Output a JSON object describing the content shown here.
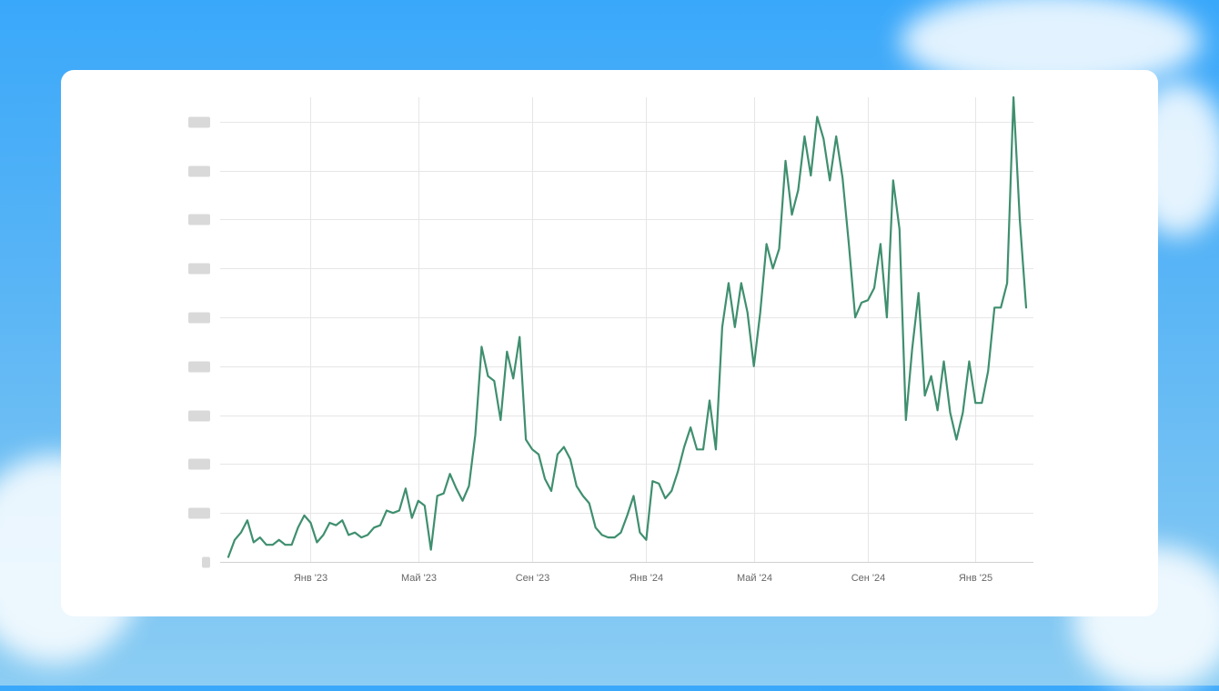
{
  "theme": {
    "line_color": "#3f8f6f",
    "card_bg": "#ffffff",
    "sky_top": "#3aa8fa",
    "sky_bottom": "#8ccdf3"
  },
  "chart_data": {
    "type": "line",
    "title": "",
    "xlabel": "",
    "ylabel": "",
    "ylim": [
      0,
      95
    ],
    "grid": true,
    "legend": "none",
    "ytick_labels_visible": false,
    "y_ticks": [
      0,
      10,
      20,
      30,
      40,
      50,
      60,
      70,
      80,
      90
    ],
    "x_ticks": [
      {
        "label": "Янв '23",
        "index": 13
      },
      {
        "label": "Май '23",
        "index": 30
      },
      {
        "label": "Сен '23",
        "index": 48
      },
      {
        "label": "Янв '24",
        "index": 66
      },
      {
        "label": "Май '24",
        "index": 83
      },
      {
        "label": "Сен '24",
        "index": 101
      },
      {
        "label": "Янв '25",
        "index": 118
      }
    ],
    "series": [
      {
        "values": [
          1,
          4.5,
          6,
          8.5,
          4,
          5,
          3.5,
          3.5,
          4.5,
          3.5,
          3.5,
          7,
          9.5,
          8,
          4,
          5.5,
          8,
          7.5,
          8.5,
          5.5,
          6,
          5,
          5.5,
          7,
          7.5,
          10.5,
          10,
          10.5,
          15,
          9,
          12.5,
          11.5,
          2.5,
          13.5,
          14,
          18,
          15,
          12.5,
          15.5,
          26,
          44,
          38,
          37,
          29,
          43,
          37.5,
          46,
          25,
          23,
          22,
          17,
          14.5,
          22,
          23.5,
          21,
          15.5,
          13.5,
          12,
          7,
          5.5,
          5,
          5,
          6,
          9.5,
          13.5,
          6,
          4.5,
          16.5,
          16,
          13,
          14.5,
          18.5,
          23.5,
          27.5,
          23,
          23,
          33,
          23,
          48,
          57,
          48,
          57,
          51,
          40,
          51,
          65,
          60,
          64,
          82,
          71,
          76,
          87,
          79,
          91,
          86.5,
          78,
          87,
          78.5,
          65,
          50,
          53,
          53.5,
          56,
          65,
          50,
          78,
          68,
          29,
          43.5,
          55,
          34,
          38,
          31,
          41,
          30.5,
          25,
          30.5,
          41,
          32.5,
          32.5,
          39,
          52,
          52,
          57,
          95,
          70,
          52
        ]
      }
    ]
  }
}
